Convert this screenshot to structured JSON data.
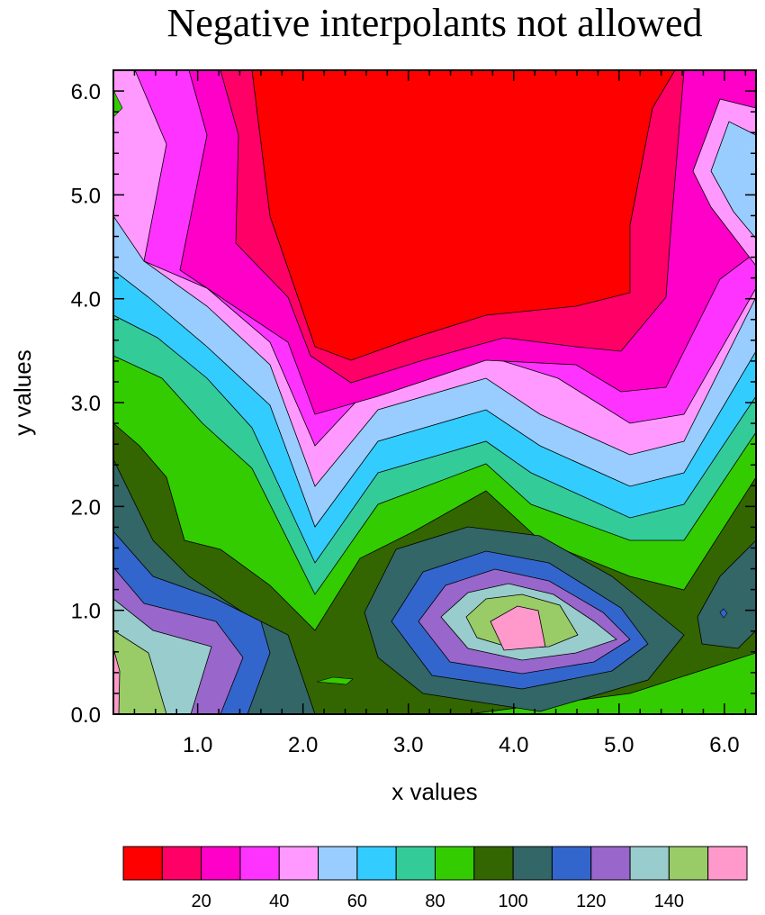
{
  "chart_data": {
    "type": "contour",
    "title": "Negative interpolants not allowed",
    "xlabel": "x values",
    "ylabel": "y values",
    "xlim": [
      0.2,
      6.3
    ],
    "ylim": [
      0.0,
      6.2
    ],
    "x_ticks": [
      1.0,
      2.0,
      3.0,
      4.0,
      5.0,
      6.0
    ],
    "x_tick_labels": [
      "1.0",
      "2.0",
      "3.0",
      "4.0",
      "5.0",
      "6.0"
    ],
    "y_ticks": [
      0.0,
      1.0,
      2.0,
      3.0,
      4.0,
      5.0,
      6.0
    ],
    "y_tick_labels": [
      "0.0",
      "1.0",
      "2.0",
      "3.0",
      "4.0",
      "5.0",
      "6.0"
    ],
    "contour_levels": [
      10,
      20,
      30,
      40,
      50,
      60,
      70,
      80,
      90,
      100,
      110,
      120,
      130,
      140,
      150
    ],
    "colorbar": {
      "colors": [
        "#ff0000",
        "#ff0066",
        "#ff00c8",
        "#ff33ff",
        "#ff99ff",
        "#99ccff",
        "#33ccff",
        "#33cc99",
        "#33cc00",
        "#336600",
        "#336666",
        "#3366cc",
        "#9966cc",
        "#99cccc",
        "#99cc66",
        "#ff99cc"
      ],
      "labels": [
        "20",
        "40",
        "60",
        "80",
        "100",
        "120",
        "140"
      ],
      "label_levels": [
        20,
        40,
        60,
        80,
        100,
        120,
        140
      ]
    },
    "regions": [
      {
        "level_index": 0,
        "description": "top center maximum-low region",
        "value_range": "<10"
      },
      {
        "level_index": 9,
        "description": "dark green band",
        "value_range": "90-100"
      },
      {
        "level_index": 15,
        "description": "local high near x=4.0, y=0.8",
        "value_range": ">150"
      }
    ]
  },
  "colors": {
    "background": "#ffffff",
    "frame": "#000000",
    "contour_line": "#000000"
  }
}
